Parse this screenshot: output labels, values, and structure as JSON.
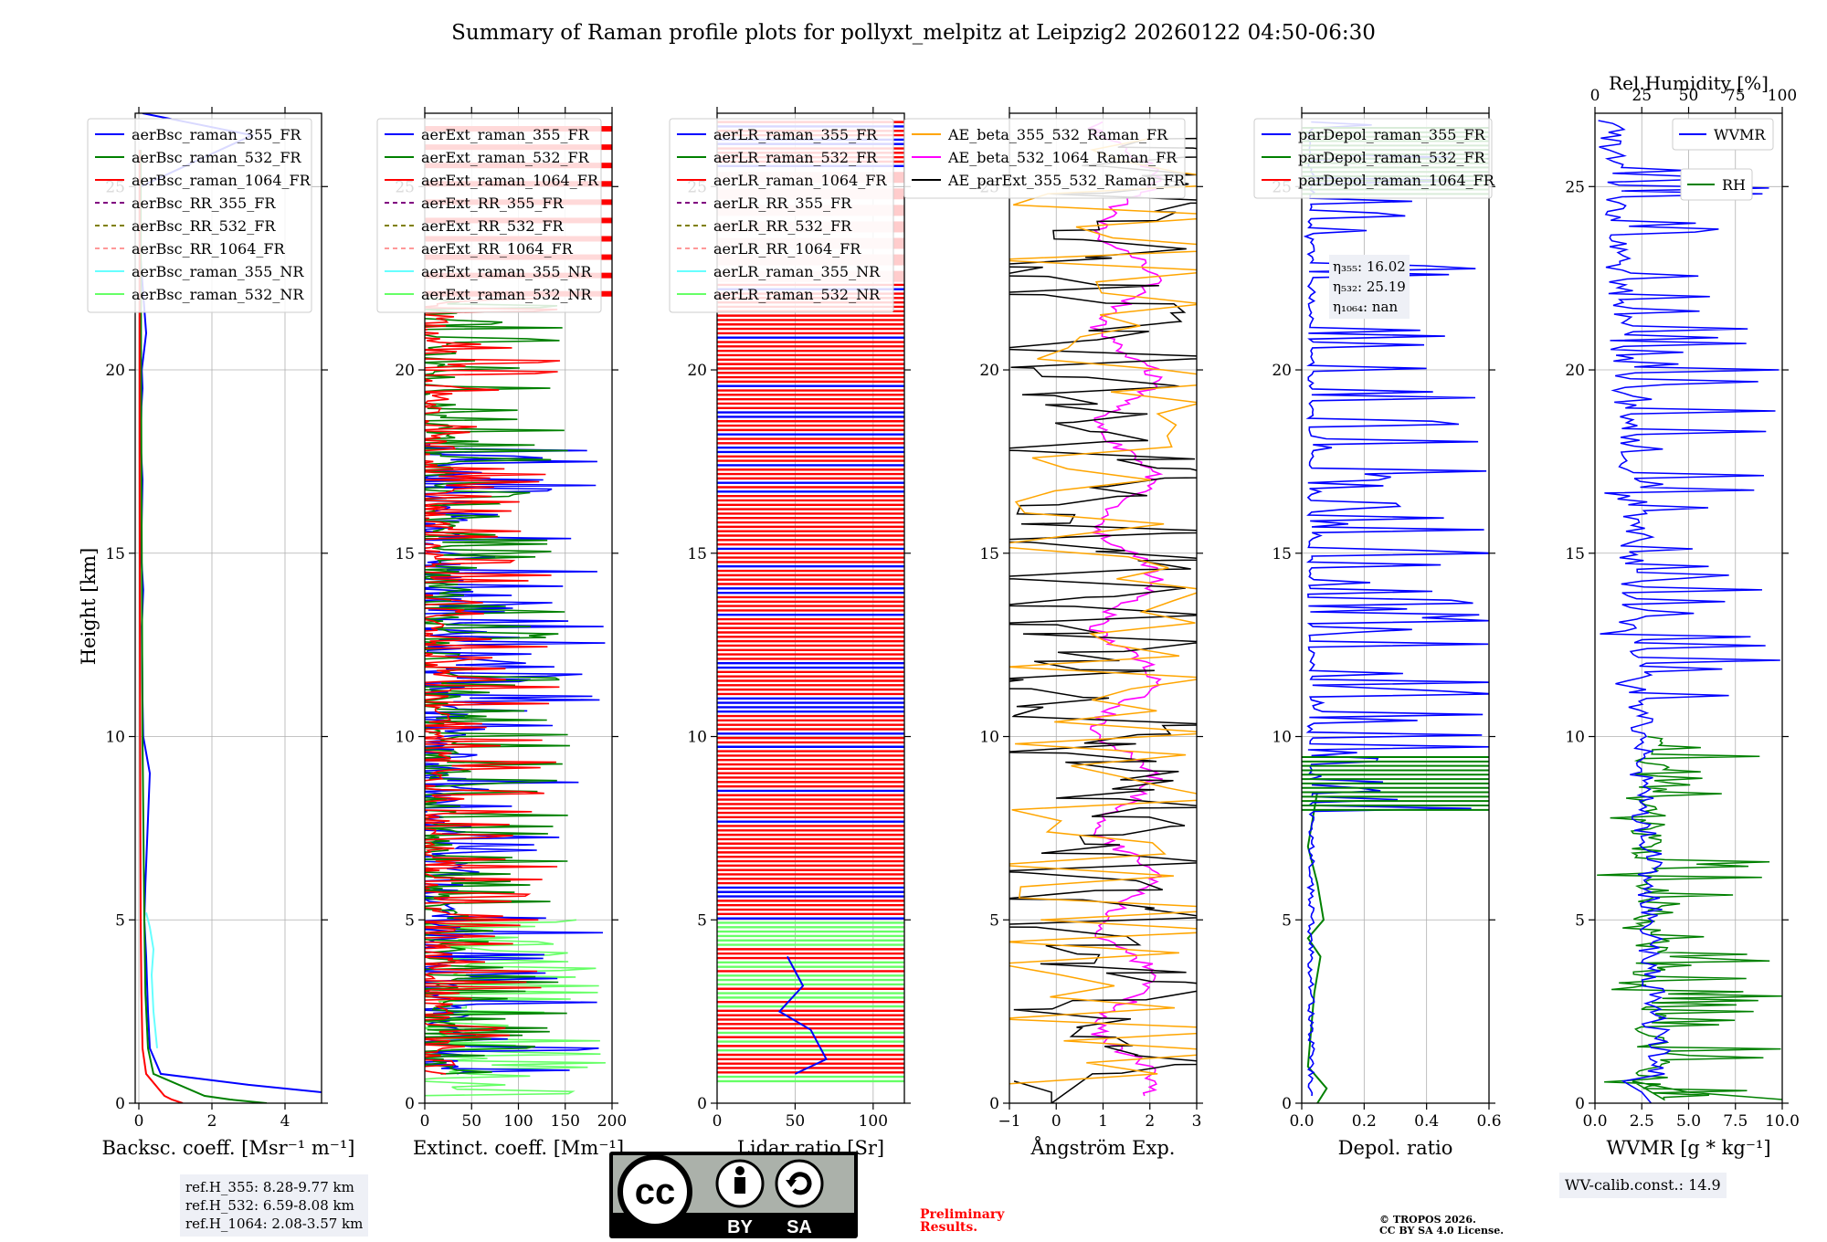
{
  "title": "Summary of Raman profile plots for pollyxt_melpitz at Leipzig2 20260122 04:50-06:30",
  "ylabel": "Height [km]",
  "colors": {
    "blue": "#0000ff",
    "green": "#008000",
    "red": "#ff0000",
    "purple": "#800080",
    "olive": "#808000",
    "salmon": "#ff9999",
    "cyan": "#66ffff",
    "lightgreen": "#66ff66",
    "orange": "#ffa500",
    "magenta": "#ff00ff",
    "black": "#000000"
  },
  "chart_data": [
    {
      "type": "line",
      "xlabel": "Backsc. coeff. [Msr⁻¹ m⁻¹]",
      "xlim": [
        -0.1,
        5
      ],
      "ylim": [
        0,
        27
      ],
      "xticks": [
        "0",
        "2",
        "4"
      ],
      "xtickvals": [
        0,
        2,
        4
      ],
      "yticks": [
        "0",
        "5",
        "10",
        "15",
        "20",
        "25"
      ],
      "legend": [
        "aerBsc_raman_355_FR",
        "aerBsc_raman_532_FR",
        "aerBsc_raman_1064_FR",
        "aerBsc_RR_355_FR",
        "aerBsc_RR_532_FR",
        "aerBsc_RR_1064_FR",
        "aerBsc_raman_355_NR",
        "aerBsc_raman_532_NR"
      ],
      "series": [
        {
          "name": "aerBsc_raman_355_FR",
          "color": "blue",
          "x": [
            5.0,
            3.0,
            0.6,
            0.3,
            0.25,
            0.2,
            0.15,
            0.18,
            0.3,
            0.12,
            0.1,
            0.08,
            0.12,
            0.06,
            0.08,
            0.1,
            0.05,
            0.07,
            0.1,
            0.08,
            0.2,
            0.05,
            0.05,
            3.1,
            0.1
          ],
          "y": [
            0.3,
            0.5,
            0.8,
            1.5,
            2.5,
            4,
            5,
            6,
            9,
            10,
            11,
            13,
            14,
            15,
            16,
            17,
            18,
            19,
            19.5,
            20,
            21,
            23,
            25,
            26.4,
            27
          ]
        },
        {
          "name": "aerBsc_raman_532_FR",
          "color": "green",
          "x": [
            3.5,
            2.5,
            1.8,
            0.4,
            0.25,
            0.18,
            0.15,
            0.12,
            0.1,
            0.08,
            0.06,
            0.05
          ],
          "y": [
            0,
            0.1,
            0.2,
            0.8,
            1.5,
            3,
            5,
            8,
            10,
            15,
            20,
            26
          ]
        },
        {
          "name": "aerBsc_raman_1064_FR",
          "color": "red",
          "x": [
            1.2,
            0.9,
            0.7,
            0.2,
            0.1,
            0.07,
            0.05,
            0.04,
            0.03,
            0.02,
            0.02
          ],
          "y": [
            0,
            0.1,
            0.2,
            0.8,
            1.5,
            3,
            5,
            8,
            12,
            18,
            26
          ]
        },
        {
          "name": "aerBsc_raman_355_NR",
          "color": "cyan",
          "x": [
            0.5,
            0.4,
            0.35,
            0.4,
            0.3,
            0.25,
            0.2
          ],
          "y": [
            1.5,
            2.5,
            3.5,
            4.2,
            4.8,
            5.0,
            5.2
          ]
        }
      ],
      "annotation": [
        "ref.H_355: 8.28-9.77 km",
        "ref.H_532: 6.59-8.08 km",
        "ref.H_1064: 2.08-3.57 km"
      ]
    },
    {
      "type": "line",
      "xlabel": "Extinct. coeff. [Mm⁻¹]",
      "xlim": [
        0,
        200
      ],
      "ylim": [
        0,
        27
      ],
      "xticks": [
        "0",
        "50",
        "100",
        "150",
        "200"
      ],
      "xtickvals": [
        0,
        50,
        100,
        150,
        200
      ],
      "yticks": [
        "0",
        "5",
        "10",
        "15",
        "20",
        "25"
      ],
      "legend": [
        "aerExt_raman_355_FR",
        "aerExt_raman_532_FR",
        "aerExt_raman_1064_FR",
        "aerExt_RR_355_FR",
        "aerExt_RR_532_FR",
        "aerExt_RR_1064_FR",
        "aerExt_raman_355_NR",
        "aerExt_raman_532_NR"
      ]
    },
    {
      "type": "line",
      "xlabel": "Lidar ratio [Sr]",
      "xlim": [
        0,
        120
      ],
      "ylim": [
        0,
        27
      ],
      "xticks": [
        "0",
        "50",
        "100"
      ],
      "xtickvals": [
        0,
        50,
        100
      ],
      "yticks": [
        "0",
        "5",
        "10",
        "15",
        "20",
        "25"
      ],
      "legend": [
        "aerLR_raman_355_FR",
        "aerLR_raman_532_FR",
        "aerLR_raman_1064_FR",
        "aerLR_RR_355_FR",
        "aerLR_RR_532_FR",
        "aerLR_RR_1064_FR",
        "aerLR_raman_355_NR",
        "aerLR_raman_532_NR"
      ]
    },
    {
      "type": "line",
      "xlabel": "Ångström Exp.",
      "xlim": [
        -1,
        3
      ],
      "ylim": [
        0,
        27
      ],
      "xticks": [
        "−1",
        "0",
        "1",
        "2",
        "3"
      ],
      "xtickvals": [
        -1,
        0,
        1,
        2,
        3
      ],
      "yticks": [
        "0",
        "5",
        "10",
        "15",
        "20",
        "25"
      ],
      "legend": [
        "AE_beta_355_532_Raman_FR",
        "AE_beta_532_1064_Raman_FR",
        "AE_parExt_355_532_Raman_FR"
      ]
    },
    {
      "type": "line",
      "xlabel": "Depol. ratio",
      "xlim": [
        0,
        0.6
      ],
      "ylim": [
        0,
        27
      ],
      "xticks": [
        "0.0",
        "0.2",
        "0.4",
        "0.6"
      ],
      "xtickvals": [
        0,
        0.2,
        0.4,
        0.6
      ],
      "yticks": [
        "0",
        "5",
        "10",
        "15",
        "20",
        "25"
      ],
      "legend": [
        "parDepol_raman_355_FR",
        "parDepol_raman_532_FR",
        "parDepol_raman_1064_FR"
      ],
      "annotation": [
        "η₃₅₅: 16.02",
        "η₅₃₂: 25.19",
        "η₁₀₆₄: nan"
      ]
    },
    {
      "type": "line",
      "xlabel": "WVMR [g * kg⁻¹]",
      "xlabel_top": "Rel.Humidity [%]",
      "xlim": [
        0,
        10
      ],
      "ylim": [
        0,
        27
      ],
      "xticks": [
        "0.0",
        "2.5",
        "5.0",
        "7.5",
        "10.0"
      ],
      "xtickvals": [
        0,
        2.5,
        5,
        7.5,
        10
      ],
      "xticks_top": [
        "0",
        "25",
        "50",
        "75",
        "100"
      ],
      "yticks": [
        "0",
        "5",
        "10",
        "15",
        "20",
        "25"
      ],
      "legend": [
        "WVMR",
        "RH"
      ],
      "annotation": [
        "WV-calib.const.: 14.9"
      ]
    }
  ],
  "footer": {
    "preliminary_line1": "Preliminary",
    "preliminary_line2": "Results.",
    "copyright_line1": "© TROPOS 2026.",
    "copyright_line2": "CC BY SA 4.0 License.",
    "license_by": "BY",
    "license_sa": "SA",
    "license_cc": "cc"
  }
}
